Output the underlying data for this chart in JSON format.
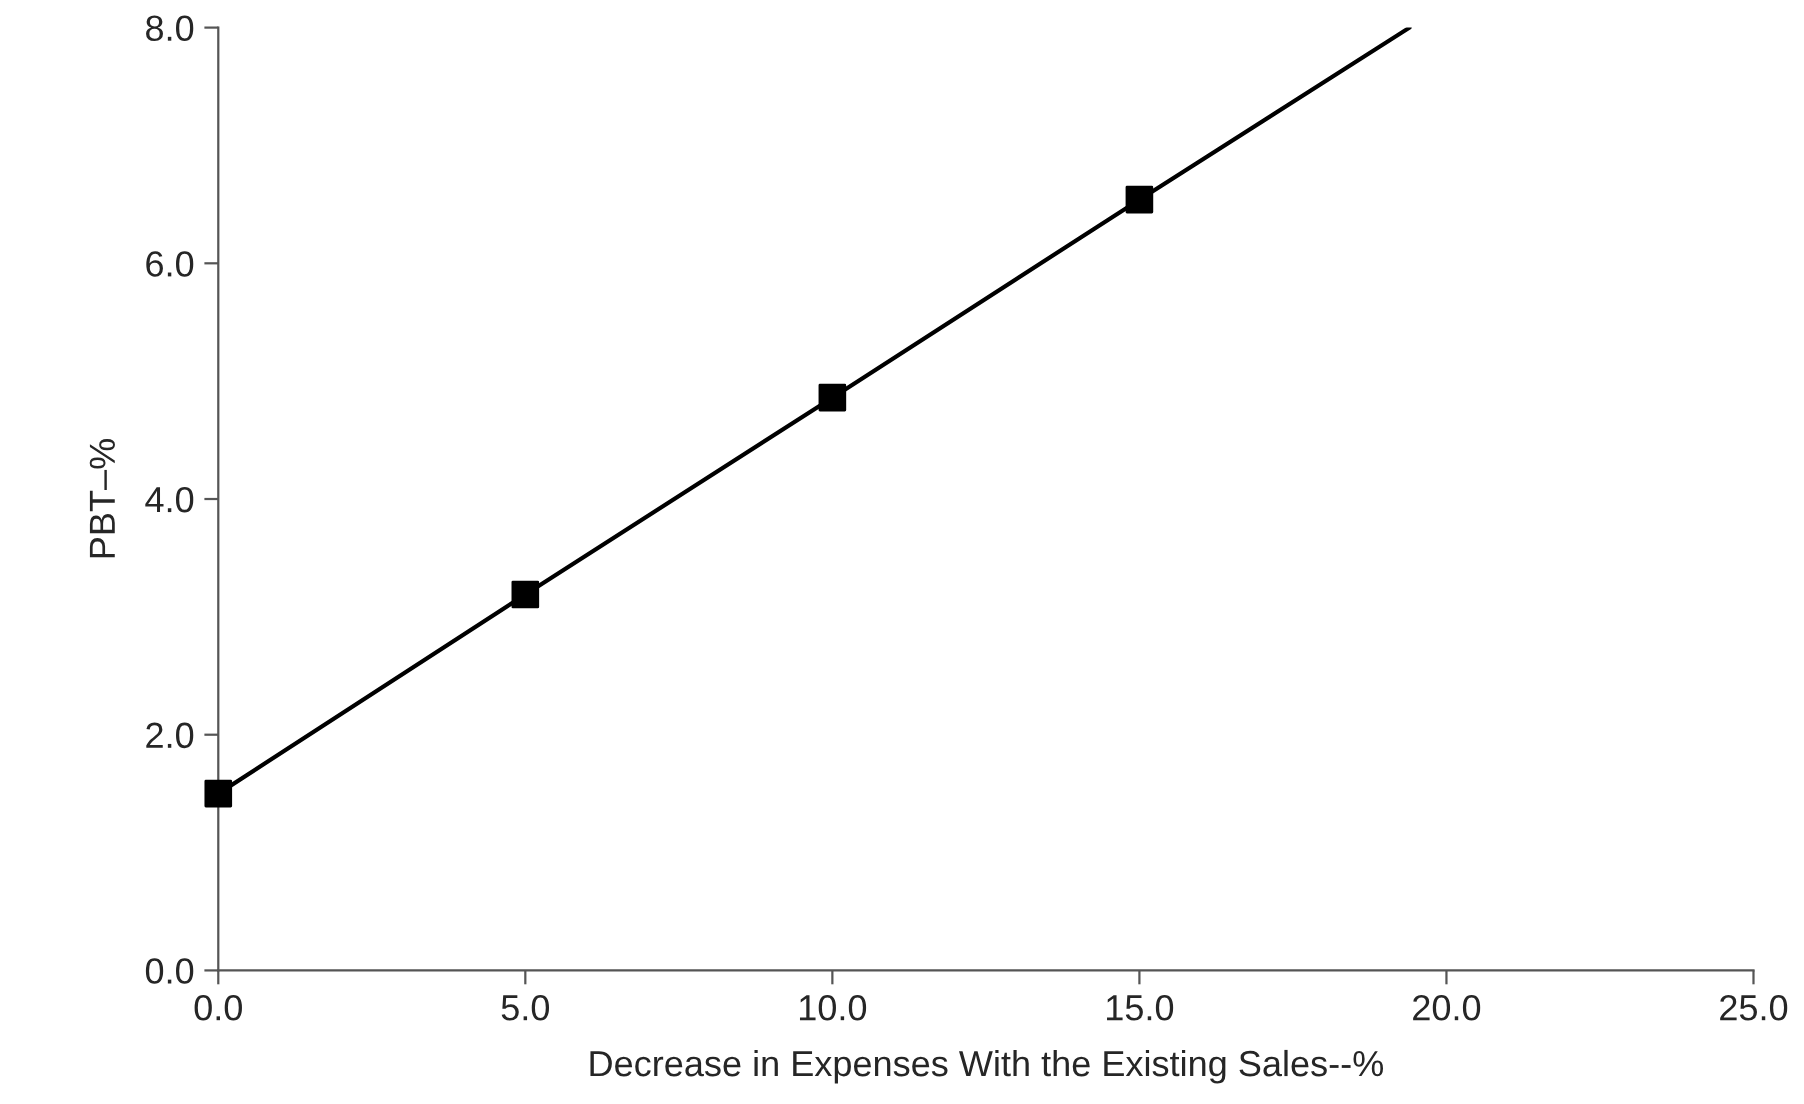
{
  "chart_data": {
    "type": "line",
    "xlabel": "Decrease in Expenses With the Existing Sales--%",
    "ylabel": "PBT–%",
    "series": [
      {
        "color": "#000000",
        "x": [
          0,
          5,
          10,
          15,
          19.4
        ],
        "values": [
          1.5,
          3.19,
          4.86,
          6.54,
          8.0
        ],
        "marker": "none"
      },
      {
        "type": "scatter",
        "color": "#000000",
        "x": [
          0,
          5,
          10,
          15
        ],
        "values": [
          1.5,
          3.19,
          4.86,
          6.54
        ],
        "marker": "square"
      }
    ],
    "xlim": [
      0,
      25
    ],
    "xticks": [
      {
        "value": 0,
        "label": "0.0"
      },
      {
        "value": 5,
        "label": "5.0"
      },
      {
        "value": 10,
        "label": "10.0"
      },
      {
        "value": 15,
        "label": "15.0"
      },
      {
        "value": 20,
        "label": "20.0"
      },
      {
        "value": 25,
        "label": "25.0"
      }
    ],
    "ylim": [
      0,
      8
    ],
    "yticks": [
      {
        "value": 0,
        "label": "0.0"
      },
      {
        "value": 2,
        "label": "2.0"
      },
      {
        "value": 4,
        "label": "4.0"
      },
      {
        "value": 6,
        "label": "6.0"
      },
      {
        "value": 8,
        "label": "8.0"
      }
    ],
    "grid": false,
    "legend": false
  }
}
